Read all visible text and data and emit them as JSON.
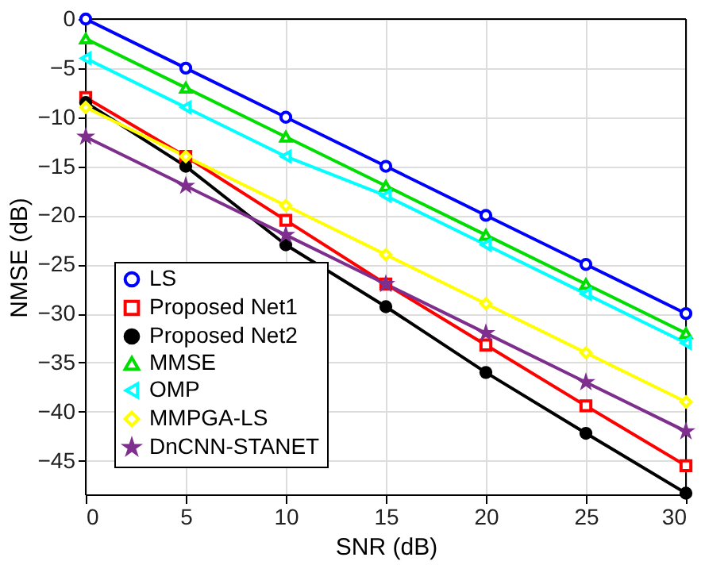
{
  "chart_data": {
    "type": "line",
    "xlabel": "SNR (dB)",
    "ylabel": "NMSE (dB)",
    "x": [
      0,
      5,
      10,
      15,
      20,
      25,
      30
    ],
    "xlim": [
      0,
      30
    ],
    "xticks": [
      0,
      5,
      10,
      15,
      20,
      25,
      30
    ],
    "ylim": [
      -48.5,
      0
    ],
    "yticks": [
      -45,
      -40,
      -35,
      -30,
      -25,
      -20,
      -15,
      -10,
      -5,
      0
    ],
    "grid": true,
    "legend": "bottom left",
    "line_style": "solid",
    "series": [
      {
        "name": "LS",
        "color": "#0000ff",
        "marker": "circle",
        "values": [
          0,
          -5,
          -10,
          -15,
          -20,
          -25,
          -30
        ]
      },
      {
        "name": "Proposed Net1",
        "color": "#ff0000",
        "marker": "square",
        "values": [
          -8,
          -14,
          -20.5,
          -27,
          -33.2,
          -39.4,
          -45.5
        ]
      },
      {
        "name": "Proposed Net2",
        "color": "#000000",
        "marker": "dot",
        "values": [
          -8.5,
          -15,
          -23,
          -29.3,
          -36,
          -42.2,
          -48.3
        ]
      },
      {
        "name": "MMSE",
        "color": "#00dd00",
        "marker": "triangle",
        "values": [
          -2,
          -7,
          -12,
          -17,
          -22,
          -27,
          -32
        ]
      },
      {
        "name": "OMP",
        "color": "#00ffff",
        "marker": "triangle-left",
        "values": [
          -4,
          -9,
          -14,
          -18,
          -23,
          -28,
          -33
        ]
      },
      {
        "name": "MMPGA-LS",
        "color": "#ffff00",
        "marker": "diamond",
        "values": [
          -9,
          -14,
          -19,
          -24,
          -29,
          -34,
          -39
        ]
      },
      {
        "name": "DnCNN-STANET",
        "color": "#7e2f8e",
        "marker": "star",
        "values": [
          -12,
          -17,
          -22,
          -27,
          -32,
          -37,
          -42
        ]
      }
    ]
  }
}
